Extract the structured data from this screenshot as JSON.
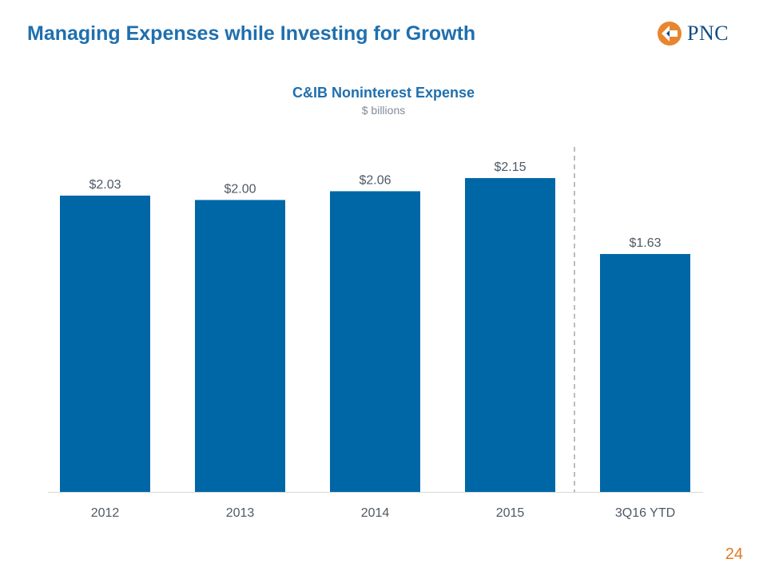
{
  "slide": {
    "title": "Managing Expenses while Investing for Growth",
    "page_number": "24",
    "logo_text": "PNC"
  },
  "colors": {
    "title": "#1F6FAE",
    "bar": "#0067A6",
    "logo_orange": "#E8862F",
    "page_number": "#E07B26"
  },
  "chart_data": {
    "type": "bar",
    "title": "C&IB Noninterest Expense",
    "subtitle": "$ billions",
    "categories": [
      "2012",
      "2013",
      "2014",
      "2015",
      "3Q16 YTD"
    ],
    "values": [
      2.03,
      2.0,
      2.06,
      2.15,
      1.63
    ],
    "data_labels": [
      "$2.03",
      "$2.00",
      "$2.06",
      "$2.15",
      "$1.63"
    ],
    "ylim": [
      0,
      2.15
    ],
    "xlabel": "",
    "ylabel": "",
    "grid": false,
    "legend": "none",
    "separator_before_category": "3Q16 YTD"
  }
}
